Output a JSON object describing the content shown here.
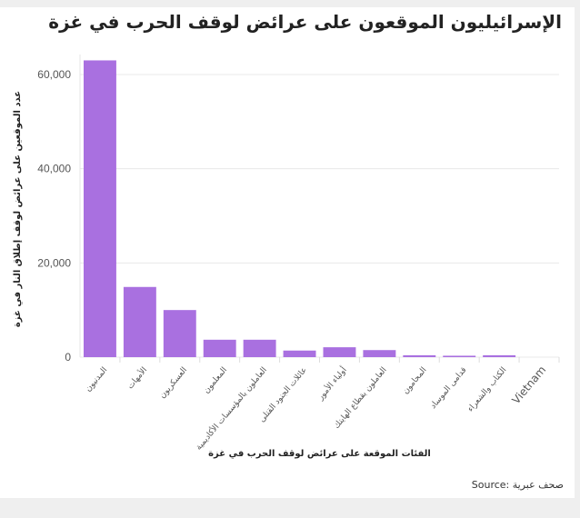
{
  "title": "الإسرائيليون الموقعون على عرائض لوقف الحرب في غزة",
  "source": "Source: صحف عبرية",
  "chart_data": {
    "type": "bar",
    "title": "الإسرائيليون الموقعون على عرائض لوقف الحرب في غزة",
    "xlabel": "الفئات الموقعة على عرائض لوقف الحرب في غزة",
    "ylabel": "عدد الموقعين على عرائض لوقف إطلاق النار في غزة",
    "categories": [
      "المدنيون",
      "الأمهات",
      "العسكريون",
      "المعلمون",
      "العاملون بالمؤسسات الأكاديمية",
      "عائلات الجنود القتلى",
      "أولياء الأمور",
      "العاملون بقطاع الهايتك",
      "المحامون",
      "قدامى الموساد",
      "الكتاب والشعراء",
      "Vietnam"
    ],
    "values": [
      63000,
      14900,
      10000,
      3700,
      3700,
      1400,
      2100,
      1500,
      400,
      300,
      400,
      0
    ],
    "ylim": [
      0,
      63000
    ],
    "yticks": [
      0,
      20000,
      40000,
      60000
    ],
    "ytick_labels": [
      "0",
      "20,000",
      "40,000",
      "60,000"
    ],
    "grid": true,
    "color": "#a970e0"
  }
}
